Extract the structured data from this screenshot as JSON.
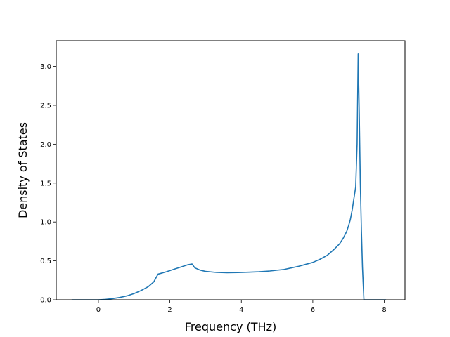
{
  "chart_data": {
    "type": "line",
    "title": "",
    "xlabel": "Frequency (THz)",
    "ylabel": "Density of States",
    "xlim": [
      -1.18,
      8.58
    ],
    "ylim": [
      0.0,
      3.33
    ],
    "x_ticks": [
      0,
      2,
      4,
      6,
      8
    ],
    "x_tick_labels": [
      "0",
      "2",
      "4",
      "6",
      "8"
    ],
    "y_ticks": [
      0.0,
      0.5,
      1.0,
      1.5,
      2.0,
      2.5,
      3.0
    ],
    "y_tick_labels": [
      "0.0",
      "0.5",
      "1.0",
      "1.5",
      "2.0",
      "2.5",
      "3.0"
    ],
    "grid": false,
    "legend": "none",
    "series": [
      {
        "color": "#1f77b4",
        "x": [
          -0.75,
          -0.2,
          0.0,
          0.2,
          0.4,
          0.6,
          0.8,
          1.0,
          1.2,
          1.4,
          1.55,
          1.62,
          1.67,
          1.75,
          1.9,
          2.1,
          2.3,
          2.5,
          2.62,
          2.7,
          2.85,
          3.0,
          3.3,
          3.6,
          3.9,
          4.2,
          4.5,
          4.8,
          5.0,
          5.2,
          5.4,
          5.6,
          5.8,
          6.0,
          6.2,
          6.4,
          6.6,
          6.75,
          6.85,
          6.95,
          7.0,
          7.05,
          7.1,
          7.15,
          7.2,
          7.24,
          7.27,
          7.3,
          7.33,
          7.36,
          7.39,
          7.43,
          7.5,
          7.8,
          8.05
        ],
        "y": [
          0.0,
          0.0,
          0.0,
          0.005,
          0.015,
          0.03,
          0.05,
          0.08,
          0.12,
          0.17,
          0.23,
          0.29,
          0.33,
          0.34,
          0.36,
          0.39,
          0.42,
          0.45,
          0.46,
          0.41,
          0.38,
          0.365,
          0.352,
          0.348,
          0.35,
          0.355,
          0.36,
          0.37,
          0.38,
          0.39,
          0.41,
          0.43,
          0.455,
          0.48,
          0.52,
          0.57,
          0.65,
          0.72,
          0.79,
          0.88,
          0.95,
          1.03,
          1.15,
          1.3,
          1.45,
          2.0,
          3.16,
          2.4,
          1.5,
          0.9,
          0.42,
          0.0,
          0.0,
          0.0,
          0.0
        ]
      }
    ]
  }
}
